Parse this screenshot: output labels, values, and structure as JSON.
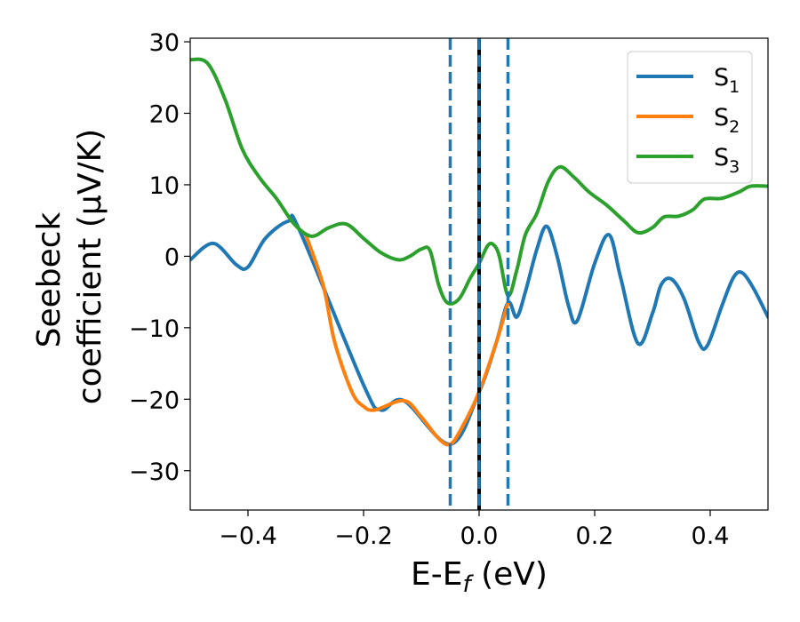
{
  "chart_data": {
    "type": "line",
    "xlabel": "E-E",
    "xlabel_sub": "f",
    "xlabel_unit": " (eV)",
    "ylabel_line1": "Seebeck",
    "ylabel_line2": "coefficient  (μV/K)",
    "xlim": [
      -0.5,
      0.5
    ],
    "ylim": [
      -35.5,
      30.5
    ],
    "x_ticks": [
      -0.4,
      -0.2,
      0.0,
      0.2,
      0.4
    ],
    "x_tick_labels": [
      "−0.4",
      "−0.2",
      "0.0",
      "0.2",
      "0.4"
    ],
    "y_ticks": [
      -30,
      -20,
      -10,
      0,
      10,
      20,
      30
    ],
    "y_tick_labels": [
      "−30",
      "−20",
      "−10",
      "0",
      "10",
      "20",
      "30"
    ],
    "grid": false,
    "legend_position": "top-right",
    "vlines": [
      {
        "x": -0.05,
        "style": "dashed",
        "color": "#1f77b4"
      },
      {
        "x": 0.0,
        "style": "solid",
        "color": "#000000"
      },
      {
        "x": 0.0,
        "style": "dashed",
        "color": "#1f77b4"
      },
      {
        "x": 0.05,
        "style": "dashed",
        "color": "#1f77b4"
      }
    ],
    "series": [
      {
        "name": "S",
        "name_sub": "1",
        "color": "#1f77b4",
        "points": [
          [
            -0.5,
            -0.5
          ],
          [
            -0.46,
            1.8
          ],
          [
            -0.42,
            -1.2
          ],
          [
            -0.4,
            -1.5
          ],
          [
            -0.37,
            2.5
          ],
          [
            -0.33,
            4.9
          ],
          [
            -0.31,
            3.5
          ],
          [
            -0.2,
            -18
          ],
          [
            -0.17,
            -21.5
          ],
          [
            -0.13,
            -20.2
          ],
          [
            -0.05,
            -26.3
          ],
          [
            0.0,
            -19.0
          ],
          [
            0.03,
            -12
          ],
          [
            0.05,
            -6.5
          ],
          [
            0.065,
            -8.5
          ],
          [
            0.08,
            -5
          ],
          [
            0.1,
            1
          ],
          [
            0.117,
            4.2
          ],
          [
            0.135,
            0
          ],
          [
            0.155,
            -7
          ],
          [
            0.17,
            -9
          ],
          [
            0.2,
            -1
          ],
          [
            0.225,
            3
          ],
          [
            0.245,
            -3
          ],
          [
            0.275,
            -12.2
          ],
          [
            0.3,
            -8
          ],
          [
            0.315,
            -4
          ],
          [
            0.333,
            -3.2
          ],
          [
            0.355,
            -6
          ],
          [
            0.38,
            -12
          ],
          [
            0.395,
            -12.5
          ],
          [
            0.42,
            -7
          ],
          [
            0.44,
            -3
          ],
          [
            0.455,
            -2.3
          ],
          [
            0.475,
            -4.5
          ],
          [
            0.5,
            -8.5
          ]
        ]
      },
      {
        "name": "S",
        "name_sub": "2",
        "color": "#ff7f0e",
        "points": [
          [
            -0.3,
            3
          ],
          [
            -0.27,
            -4
          ],
          [
            -0.25,
            -12
          ],
          [
            -0.22,
            -19
          ],
          [
            -0.2,
            -21
          ],
          [
            -0.18,
            -21.5
          ],
          [
            -0.13,
            -20.2
          ],
          [
            -0.1,
            -22.5
          ],
          [
            -0.07,
            -25.5
          ],
          [
            -0.05,
            -26.3
          ],
          [
            -0.03,
            -24
          ],
          [
            0.0,
            -19.0
          ],
          [
            0.03,
            -12
          ],
          [
            0.05,
            -6.5
          ]
        ]
      },
      {
        "name": "S",
        "name_sub": "3",
        "color": "#2ca02c",
        "points": [
          [
            -0.5,
            27.5
          ],
          [
            -0.47,
            27
          ],
          [
            -0.44,
            22
          ],
          [
            -0.41,
            15
          ],
          [
            -0.38,
            11
          ],
          [
            -0.35,
            8
          ],
          [
            -0.32,
            4.5
          ],
          [
            -0.29,
            2.8
          ],
          [
            -0.26,
            4
          ],
          [
            -0.23,
            4.5
          ],
          [
            -0.2,
            2.5
          ],
          [
            -0.17,
            0.5
          ],
          [
            -0.14,
            -0.5
          ],
          [
            -0.12,
            0
          ],
          [
            -0.1,
            1
          ],
          [
            -0.085,
            0.8
          ],
          [
            -0.07,
            -4
          ],
          [
            -0.055,
            -6.5
          ],
          [
            -0.035,
            -6
          ],
          [
            -0.015,
            -3
          ],
          [
            0.0,
            -1
          ],
          [
            0.015,
            1.5
          ],
          [
            0.025,
            1.6
          ],
          [
            0.035,
            0
          ],
          [
            0.05,
            -5.5
          ],
          [
            0.065,
            -2
          ],
          [
            0.08,
            3
          ],
          [
            0.1,
            6
          ],
          [
            0.12,
            10.5
          ],
          [
            0.14,
            12.5
          ],
          [
            0.165,
            11
          ],
          [
            0.19,
            9
          ],
          [
            0.22,
            7.2
          ],
          [
            0.25,
            5
          ],
          [
            0.275,
            3.3
          ],
          [
            0.3,
            4
          ],
          [
            0.32,
            5.5
          ],
          [
            0.345,
            5.6
          ],
          [
            0.37,
            6.5
          ],
          [
            0.39,
            8
          ],
          [
            0.42,
            8.1
          ],
          [
            0.45,
            9
          ],
          [
            0.47,
            9.8
          ],
          [
            0.5,
            9.8
          ]
        ]
      }
    ]
  }
}
